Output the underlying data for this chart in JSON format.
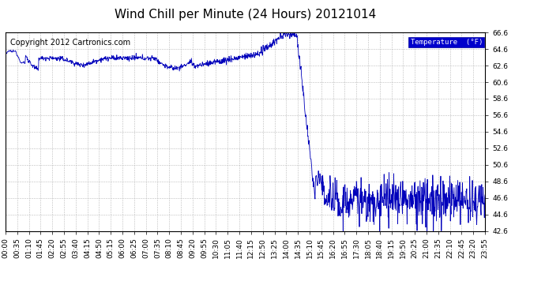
{
  "title": "Wind Chill per Minute (24 Hours) 20121014",
  "copyright_text": "Copyright 2012 Cartronics.com",
  "legend_label": "Temperature  (°F)",
  "line_color": "#0000bb",
  "background_color": "#ffffff",
  "plot_background": "#ffffff",
  "grid_color": "#bbbbbb",
  "ylim": [
    42.6,
    66.6
  ],
  "yticks": [
    42.6,
    44.6,
    46.6,
    48.6,
    50.6,
    52.6,
    54.6,
    56.6,
    58.6,
    60.6,
    62.6,
    64.6,
    66.6
  ],
  "xtick_labels": [
    "00:00",
    "00:35",
    "01:10",
    "01:45",
    "02:20",
    "02:55",
    "03:40",
    "04:15",
    "04:50",
    "05:15",
    "06:00",
    "06:25",
    "07:00",
    "07:35",
    "08:10",
    "08:45",
    "09:20",
    "09:55",
    "10:30",
    "11:05",
    "11:40",
    "12:15",
    "12:50",
    "13:25",
    "14:00",
    "14:35",
    "15:10",
    "15:45",
    "16:20",
    "16:55",
    "17:30",
    "18:05",
    "18:40",
    "19:15",
    "19:50",
    "20:25",
    "21:00",
    "21:35",
    "22:10",
    "22:45",
    "23:20",
    "23:55"
  ],
  "title_fontsize": 11,
  "axis_fontsize": 6.5,
  "copyright_fontsize": 7
}
